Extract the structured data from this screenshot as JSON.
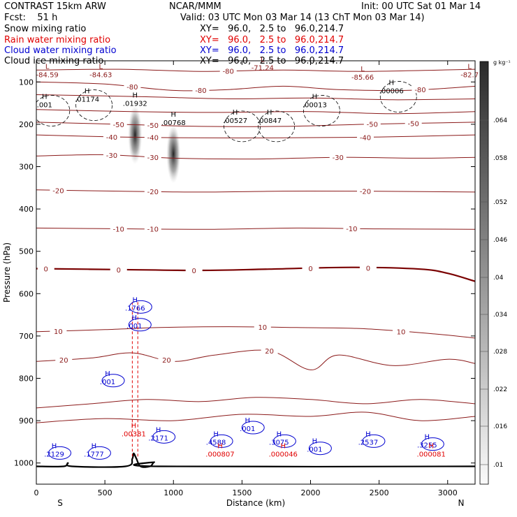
{
  "header": {
    "model": "CONTRAST 15km ARW",
    "org": "NCAR/MMM",
    "init": "Init: 00 UTC Sat 01 Mar 14",
    "fcst": "Fcst:    51 h",
    "valid": "Valid: 03 UTC Mon 03 Mar 14 (13 ChT Mon 03 Mar 14)",
    "fields": [
      {
        "name": "Snow mixing ratio",
        "xy": "XY=   96.0,   2.5 to   96.0,214.7",
        "color": "#000000"
      },
      {
        "name": "Rain water mixing ratio",
        "xy": "XY=   96.0,   2.5 to   96.0,214.7",
        "color": "#e00000"
      },
      {
        "name": "Cloud water mixing ratio",
        "xy": "XY=   96.0,   2.5 to   96.0,214.7",
        "color": "#0000d0"
      },
      {
        "name": "Cloud ice mixing ratio",
        "xy": "XY=   96.0,   2.5 to   96.0,214.7",
        "color": "#000000"
      }
    ]
  },
  "colors": {
    "temperature": "#8b1a1a",
    "zero_isotherm": "#7a0000",
    "rain": "#e00000",
    "cloud_water": "#0000d0",
    "snow_shade_max": "#2a2a2a"
  },
  "chart_data": {
    "type": "contour",
    "xlabel": "Distance (km)",
    "ylabel": "Pressure (hPa)",
    "xlim": [
      0,
      3200
    ],
    "ylim": [
      1050,
      50
    ],
    "xticks": [
      "0",
      "500",
      "1000",
      "1500",
      "2000",
      "2500",
      "3000"
    ],
    "yticks": [
      "100",
      "200",
      "300",
      "400",
      "500",
      "600",
      "700",
      "800",
      "900",
      "1000"
    ],
    "end_labels": {
      "left": "S",
      "right": "N"
    },
    "colorbar": {
      "unit": "g kg⁻¹",
      "ticks": [
        ".01",
        ".016",
        ".022",
        ".028",
        ".034",
        ".04",
        ".046",
        ".052",
        ".058",
        ".064"
      ]
    },
    "temperature_contour_labels": [
      "-80",
      "-80",
      "-80",
      "-80",
      "-50",
      "-50",
      "-50",
      "-50",
      "-40",
      "-40",
      "-40",
      "-30",
      "-30",
      "-30",
      "-20",
      "-20",
      "-20",
      "-10",
      "-10",
      "-10",
      "0",
      "0",
      "0",
      "0",
      "0",
      "10",
      "10",
      "10",
      "20",
      "20",
      "20"
    ],
    "temperature_contours": [
      {
        "level": -80,
        "points": [
          [
            0,
            72
          ],
          [
            600,
            70
          ],
          [
            1200,
            75
          ],
          [
            1800,
            72
          ],
          [
            2400,
            75
          ],
          [
            3200,
            70
          ]
        ]
      },
      {
        "level": -80,
        "points": [
          [
            0,
            100
          ],
          [
            500,
            105
          ],
          [
            1000,
            120
          ],
          [
            1400,
            118
          ],
          [
            1800,
            110
          ],
          [
            2200,
            118
          ],
          [
            2700,
            120
          ],
          [
            3200,
            110
          ]
        ]
      },
      {
        "level": -70,
        "points": [
          [
            0,
            130
          ],
          [
            800,
            135
          ],
          [
            1400,
            140
          ],
          [
            2000,
            138
          ],
          [
            2600,
            142
          ],
          [
            3200,
            140
          ]
        ]
      },
      {
        "level": -60,
        "points": [
          [
            0,
            165
          ],
          [
            700,
            170
          ],
          [
            1300,
            172
          ],
          [
            2000,
            170
          ],
          [
            2600,
            175
          ],
          [
            3200,
            170
          ]
        ]
      },
      {
        "level": -50,
        "points": [
          [
            0,
            195
          ],
          [
            600,
            200
          ],
          [
            1200,
            205
          ],
          [
            1800,
            205
          ],
          [
            2400,
            200
          ],
          [
            3200,
            195
          ]
        ]
      },
      {
        "level": -40,
        "points": [
          [
            0,
            225
          ],
          [
            600,
            230
          ],
          [
            1200,
            232
          ],
          [
            1800,
            232
          ],
          [
            2500,
            230
          ],
          [
            3200,
            225
          ]
        ]
      },
      {
        "level": -30,
        "points": [
          [
            0,
            275
          ],
          [
            500,
            272
          ],
          [
            1000,
            280
          ],
          [
            1600,
            282
          ],
          [
            2200,
            278
          ],
          [
            2800,
            280
          ],
          [
            3200,
            278
          ]
        ]
      },
      {
        "level": -20,
        "points": [
          [
            0,
            355
          ],
          [
            600,
            358
          ],
          [
            1200,
            360
          ],
          [
            1800,
            358
          ],
          [
            2400,
            358
          ],
          [
            3200,
            360
          ]
        ]
      },
      {
        "level": -10,
        "points": [
          [
            0,
            445
          ],
          [
            700,
            447
          ],
          [
            1300,
            448
          ],
          [
            1900,
            445
          ],
          [
            2500,
            447
          ],
          [
            3200,
            448
          ]
        ]
      },
      {
        "level": 0,
        "points": [
          [
            0,
            541
          ],
          [
            600,
            543
          ],
          [
            1200,
            545
          ],
          [
            1700,
            542
          ],
          [
            2300,
            538
          ],
          [
            2800,
            542
          ],
          [
            3000,
            552
          ],
          [
            3200,
            571
          ]
        ]
      },
      {
        "level": 10,
        "points": [
          [
            0,
            690
          ],
          [
            500,
            685
          ],
          [
            900,
            680
          ],
          [
            1400,
            678
          ],
          [
            1900,
            680
          ],
          [
            2400,
            683
          ],
          [
            2900,
            695
          ],
          [
            3200,
            705
          ]
        ]
      },
      {
        "level": 10,
        "points": [
          [
            0,
            760
          ],
          [
            400,
            752
          ],
          [
            700,
            740
          ],
          [
            1000,
            760
          ],
          [
            1300,
            745
          ],
          [
            1700,
            735
          ],
          [
            2000,
            780
          ],
          [
            2200,
            745
          ],
          [
            2600,
            770
          ],
          [
            3000,
            755
          ],
          [
            3200,
            765
          ]
        ]
      },
      {
        "level": 20,
        "points": [
          [
            0,
            870
          ],
          [
            400,
            860
          ],
          [
            800,
            850
          ],
          [
            1200,
            855
          ],
          [
            1600,
            845
          ],
          [
            2000,
            850
          ],
          [
            2400,
            860
          ],
          [
            2800,
            850
          ],
          [
            3200,
            860
          ]
        ]
      },
      {
        "level": 20,
        "points": [
          [
            0,
            905
          ],
          [
            500,
            895
          ],
          [
            1000,
            900
          ],
          [
            1500,
            885
          ],
          [
            2000,
            890
          ],
          [
            2400,
            880
          ],
          [
            2800,
            900
          ],
          [
            3200,
            890
          ]
        ]
      }
    ],
    "snow_maxima": [
      {
        "label": ".01932",
        "x": 720,
        "p": 155
      },
      {
        "label": ".00768",
        "x": 1000,
        "p": 200
      }
    ],
    "cloud_ice_maxima": [
      {
        "label": ".001",
        "x": 60,
        "p": 158
      },
      {
        "label": ".01174",
        "x": 370,
        "p": 145
      },
      {
        "label": ".00527",
        "x": 1450,
        "p": 195
      },
      {
        "label": ".00847",
        "x": 1700,
        "p": 195
      },
      {
        "label": ".00013",
        "x": 2030,
        "p": 158
      },
      {
        "label": ".00006",
        "x": 2590,
        "p": 125
      }
    ],
    "temperature_extrema": [
      {
        "label": "-84.59",
        "x": 80,
        "p": 82
      },
      {
        "label": "-84.63",
        "x": 470,
        "p": 82
      },
      {
        "label": "-71.24",
        "x": 1650,
        "p": 66
      },
      {
        "label": "-85.66",
        "x": 2380,
        "p": 88
      },
      {
        "label": "-82.7",
        "x": 3160,
        "p": 82
      }
    ],
    "cloud_water_maxima": [
      {
        "label": ".1766",
        "x": 720,
        "p": 638
      },
      {
        "label": ".001",
        "x": 715,
        "p": 680
      },
      {
        "label": ".001",
        "x": 520,
        "p": 812
      },
      {
        "label": ".2129",
        "x": 130,
        "p": 983
      },
      {
        "label": ".1777",
        "x": 420,
        "p": 983
      },
      {
        "label": ".2171",
        "x": 890,
        "p": 945
      },
      {
        "label": ".4588",
        "x": 1310,
        "p": 955
      },
      {
        "label": ".001",
        "x": 1540,
        "p": 923
      },
      {
        "label": ".3075",
        "x": 1770,
        "p": 955
      },
      {
        "label": ".001",
        "x": 2030,
        "p": 972
      },
      {
        "label": ".2537",
        "x": 2420,
        "p": 955
      },
      {
        "label": ".3255",
        "x": 2850,
        "p": 962
      }
    ],
    "rain_maxima": [
      {
        "label": ".00381",
        "x": 710,
        "p": 935
      },
      {
        "label": ".000807",
        "x": 1340,
        "p": 983
      },
      {
        "label": ".000046",
        "x": 1800,
        "p": 983
      },
      {
        "label": ".000081",
        "x": 2880,
        "p": 983
      }
    ],
    "terrain": [
      [
        0,
        1008
      ],
      [
        200,
        1008
      ],
      [
        230,
        1000
      ],
      [
        260,
        1008
      ],
      [
        650,
        1008
      ],
      [
        700,
        990
      ],
      [
        710,
        977
      ],
      [
        730,
        990
      ],
      [
        760,
        1008
      ],
      [
        830,
        1008
      ],
      [
        860,
        998
      ],
      [
        890,
        1008
      ],
      [
        3200,
        1008
      ]
    ]
  }
}
